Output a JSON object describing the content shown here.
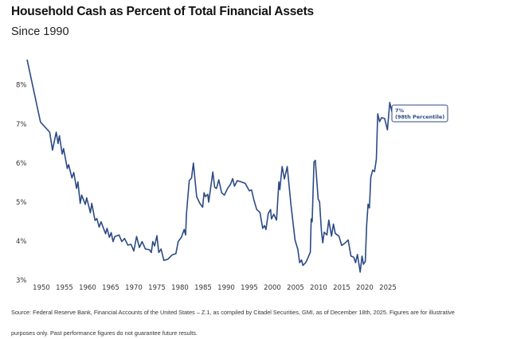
{
  "chart_data": {
    "type": "line",
    "title": "Household Cash as Percent of Total Financial Assets",
    "subtitle": "Since 1990",
    "xlabel": "",
    "ylabel": "",
    "xlim": [
      1946,
      2028
    ],
    "ylim": [
      3,
      8.8
    ],
    "x_ticks": [
      "1950",
      "1955",
      "1960",
      "1965",
      "1970",
      "1975",
      "1980",
      "1985",
      "1990",
      "1995",
      "2000",
      "2005",
      "2010",
      "2015",
      "2020",
      "2025"
    ],
    "y_ticks": [
      "3%",
      "4%",
      "5%",
      "6%",
      "7%",
      "8%"
    ],
    "grid": false,
    "line_color": "#2b4a86",
    "annotation": {
      "line1": "7%",
      "line2": "(98th Percentile)"
    },
    "points": [
      [
        1946.9,
        8.65
      ],
      [
        1949.8,
        7.05
      ],
      [
        1951.8,
        6.79
      ],
      [
        1952.4,
        6.33
      ],
      [
        1953.2,
        6.79
      ],
      [
        1953.6,
        6.5
      ],
      [
        1953.9,
        6.7
      ],
      [
        1954.5,
        6.23
      ],
      [
        1954.8,
        6.37
      ],
      [
        1955.6,
        5.86
      ],
      [
        1955.9,
        5.96
      ],
      [
        1956.6,
        5.62
      ],
      [
        1957.0,
        5.76
      ],
      [
        1957.6,
        5.35
      ],
      [
        1957.9,
        5.52
      ],
      [
        1958.4,
        4.97
      ],
      [
        1958.7,
        5.18
      ],
      [
        1959.5,
        4.94
      ],
      [
        1959.8,
        5.11
      ],
      [
        1960.6,
        4.73
      ],
      [
        1960.9,
        4.97
      ],
      [
        1961.6,
        4.53
      ],
      [
        1962.0,
        4.58
      ],
      [
        1962.5,
        4.36
      ],
      [
        1962.9,
        4.5
      ],
      [
        1963.9,
        4.19
      ],
      [
        1964.2,
        4.33
      ],
      [
        1964.7,
        4.1
      ],
      [
        1965.1,
        4.22
      ],
      [
        1965.5,
        3.99
      ],
      [
        1965.9,
        4.12
      ],
      [
        1966.8,
        4.16
      ],
      [
        1967.4,
        3.99
      ],
      [
        1968.0,
        4.07
      ],
      [
        1968.7,
        3.9
      ],
      [
        1969.4,
        3.92
      ],
      [
        1970.0,
        3.75
      ],
      [
        1970.2,
        3.88
      ],
      [
        1970.6,
        4.12
      ],
      [
        1971.2,
        3.84
      ],
      [
        1971.8,
        3.99
      ],
      [
        1972.5,
        3.8
      ],
      [
        1973.4,
        3.78
      ],
      [
        1973.8,
        3.71
      ],
      [
        1974.1,
        3.99
      ],
      [
        1974.5,
        3.88
      ],
      [
        1975.0,
        4.14
      ],
      [
        1975.4,
        3.71
      ],
      [
        1975.9,
        3.8
      ],
      [
        1976.5,
        3.51
      ],
      [
        1977.4,
        3.54
      ],
      [
        1978.3,
        3.65
      ],
      [
        1979.1,
        3.68
      ],
      [
        1979.6,
        3.99
      ],
      [
        1980.3,
        4.1
      ],
      [
        1980.9,
        4.3
      ],
      [
        1981.2,
        4.16
      ],
      [
        1981.4,
        4.7
      ],
      [
        1982.0,
        5.55
      ],
      [
        1982.5,
        5.62
      ],
      [
        1982.9,
        6.0
      ],
      [
        1983.6,
        5.14
      ],
      [
        1984.3,
        4.97
      ],
      [
        1984.9,
        4.87
      ],
      [
        1985.2,
        5.24
      ],
      [
        1985.5,
        5.14
      ],
      [
        1986.0,
        5.2
      ],
      [
        1986.2,
        5.0
      ],
      [
        1987.1,
        5.77
      ],
      [
        1987.5,
        5.38
      ],
      [
        1987.9,
        5.35
      ],
      [
        1988.4,
        5.57
      ],
      [
        1989.0,
        5.24
      ],
      [
        1989.6,
        5.18
      ],
      [
        1990.3,
        5.35
      ],
      [
        1990.9,
        5.45
      ],
      [
        1991.4,
        5.6
      ],
      [
        1991.8,
        5.41
      ],
      [
        1992.4,
        5.55
      ],
      [
        1993.2,
        5.52
      ],
      [
        1994.1,
        5.48
      ],
      [
        1995.0,
        5.29
      ],
      [
        1995.5,
        5.31
      ],
      [
        1996.0,
        5.05
      ],
      [
        1996.6,
        4.81
      ],
      [
        1997.3,
        4.74
      ],
      [
        1997.9,
        4.33
      ],
      [
        1998.3,
        4.4
      ],
      [
        1998.6,
        4.3
      ],
      [
        1999.1,
        4.71
      ],
      [
        1999.6,
        4.81
      ],
      [
        1999.8,
        4.57
      ],
      [
        2000.3,
        4.69
      ],
      [
        2000.9,
        4.54
      ],
      [
        2001.4,
        5.52
      ],
      [
        2001.6,
        5.32
      ],
      [
        2002.1,
        5.91
      ],
      [
        2002.6,
        5.59
      ],
      [
        2003.2,
        5.91
      ],
      [
        2004.0,
        4.95
      ],
      [
        2004.9,
        4.03
      ],
      [
        2005.5,
        3.79
      ],
      [
        2005.9,
        3.45
      ],
      [
        2006.3,
        3.52
      ],
      [
        2006.6,
        3.38
      ],
      [
        2007.2,
        3.45
      ],
      [
        2007.6,
        3.55
      ],
      [
        2008.2,
        3.72
      ],
      [
        2008.4,
        4.57
      ],
      [
        2008.6,
        4.5
      ],
      [
        2009.0,
        6.03
      ],
      [
        2009.3,
        6.07
      ],
      [
        2009.9,
        5.08
      ],
      [
        2010.2,
        5.01
      ],
      [
        2010.6,
        4.27
      ],
      [
        2010.9,
        3.96
      ],
      [
        2011.2,
        4.23
      ],
      [
        2011.8,
        4.16
      ],
      [
        2012.2,
        4.54
      ],
      [
        2012.8,
        4.13
      ],
      [
        2013.2,
        4.44
      ],
      [
        2013.6,
        4.2
      ],
      [
        2014.4,
        4.13
      ],
      [
        2015.0,
        3.89
      ],
      [
        2015.8,
        3.96
      ],
      [
        2016.4,
        4.03
      ],
      [
        2017.0,
        3.62
      ],
      [
        2017.6,
        3.59
      ],
      [
        2018.0,
        3.45
      ],
      [
        2018.4,
        3.66
      ],
      [
        2019.0,
        3.21
      ],
      [
        2019.4,
        3.62
      ],
      [
        2019.7,
        3.41
      ],
      [
        2020.1,
        3.48
      ],
      [
        2020.4,
        4.4
      ],
      [
        2020.7,
        4.95
      ],
      [
        2021.0,
        4.85
      ],
      [
        2021.3,
        5.63
      ],
      [
        2021.7,
        5.82
      ],
      [
        2022.1,
        5.78
      ],
      [
        2022.5,
        6.1
      ],
      [
        2022.8,
        7.26
      ],
      [
        2023.2,
        7.06
      ],
      [
        2023.6,
        7.16
      ],
      [
        2024.3,
        7.14
      ],
      [
        2024.9,
        6.85
      ],
      [
        2025.4,
        7.55
      ],
      [
        2025.9,
        7.3
      ]
    ]
  },
  "footer": {
    "line1": "Source: Federal Reserve Bank, Financial Accounts of the United States – Z.1, as compiled by Citadel Securities, GMI, as of December 18th, 2025. Figures are for illustrative",
    "line2": "purposes only. Past performance figures do not guarantee future results."
  }
}
